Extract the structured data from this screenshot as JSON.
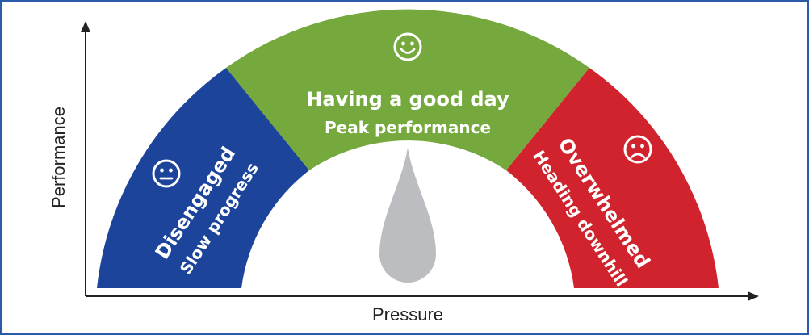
{
  "axes": {
    "x_label": "Pressure",
    "y_label": "Performance"
  },
  "segments": [
    {
      "key": "left",
      "title": "Disengaged",
      "subtitle": "Slow progress",
      "icon": "neutral-face-icon",
      "color": "#1c449b"
    },
    {
      "key": "middle",
      "title": "Having a good day",
      "subtitle": "Peak performance",
      "icon": "smiley-face-icon",
      "color": "#76a93d"
    },
    {
      "key": "right",
      "title": "Overwhelmed",
      "subtitle": "Heading downhill",
      "icon": "sad-face-icon",
      "color": "#d0232d"
    }
  ],
  "colors": {
    "frame": "#2b5aa8",
    "needle": "#bcbdc0",
    "axis": "#222222"
  }
}
